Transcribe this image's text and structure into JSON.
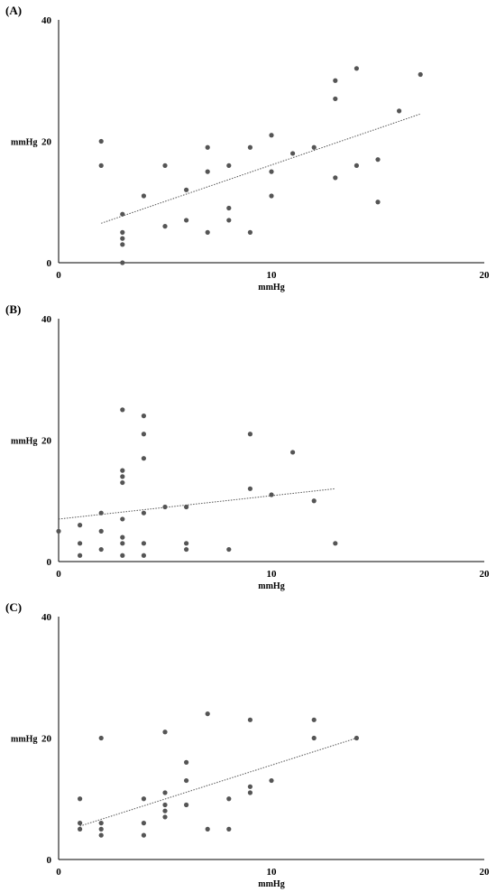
{
  "chart_data": [
    {
      "type": "scatter",
      "panel_label": "(A)",
      "xlabel": "mmHg",
      "ylabel": "mmHg",
      "xlim": [
        0,
        20
      ],
      "ylim": [
        0,
        40
      ],
      "x_ticks": [
        "0",
        "10",
        "20"
      ],
      "y_ticks": [
        "0",
        "20",
        "40"
      ],
      "trendline": {
        "x": [
          2,
          17
        ],
        "y": [
          6.5,
          24.5
        ]
      },
      "points": [
        [
          2,
          20
        ],
        [
          2,
          16
        ],
        [
          3,
          8
        ],
        [
          3,
          5
        ],
        [
          3,
          4
        ],
        [
          3,
          3
        ],
        [
          3,
          0
        ],
        [
          4,
          11
        ],
        [
          5,
          16
        ],
        [
          5,
          6
        ],
        [
          6,
          12
        ],
        [
          6,
          7
        ],
        [
          7,
          19
        ],
        [
          7,
          15
        ],
        [
          7,
          5
        ],
        [
          8,
          16
        ],
        [
          8,
          9
        ],
        [
          8,
          7
        ],
        [
          9,
          19
        ],
        [
          9,
          5
        ],
        [
          10,
          21
        ],
        [
          10,
          15
        ],
        [
          10,
          11
        ],
        [
          11,
          18
        ],
        [
          12,
          19
        ],
        [
          13,
          30
        ],
        [
          13,
          27
        ],
        [
          13,
          14
        ],
        [
          14,
          32
        ],
        [
          14,
          16
        ],
        [
          15,
          17
        ],
        [
          15,
          10
        ],
        [
          16,
          25
        ],
        [
          17,
          31
        ]
      ]
    },
    {
      "type": "scatter",
      "panel_label": "(B)",
      "xlabel": "mmHg",
      "ylabel": "mmHg",
      "xlim": [
        0,
        20
      ],
      "ylim": [
        0,
        40
      ],
      "x_ticks": [
        "0",
        "10",
        "20"
      ],
      "y_ticks": [
        "0",
        "20",
        "40"
      ],
      "trendline": {
        "x": [
          0,
          13
        ],
        "y": [
          7,
          12
        ]
      },
      "points": [
        [
          0,
          5
        ],
        [
          1,
          6
        ],
        [
          1,
          3
        ],
        [
          1,
          1
        ],
        [
          2,
          8
        ],
        [
          2,
          5
        ],
        [
          2,
          2
        ],
        [
          3,
          25
        ],
        [
          3,
          15
        ],
        [
          3,
          14
        ],
        [
          3,
          13
        ],
        [
          3,
          7
        ],
        [
          3,
          4
        ],
        [
          3,
          3
        ],
        [
          3,
          1
        ],
        [
          4,
          24
        ],
        [
          4,
          21
        ],
        [
          4,
          17
        ],
        [
          4,
          8
        ],
        [
          4,
          3
        ],
        [
          4,
          1
        ],
        [
          5,
          9
        ],
        [
          6,
          9
        ],
        [
          6,
          3
        ],
        [
          6,
          2
        ],
        [
          8,
          2
        ],
        [
          9,
          21
        ],
        [
          9,
          12
        ],
        [
          10,
          11
        ],
        [
          11,
          18
        ],
        [
          12,
          10
        ],
        [
          13,
          3
        ]
      ]
    },
    {
      "type": "scatter",
      "panel_label": "(C)",
      "xlabel": "mmHg",
      "ylabel": "mmHg",
      "xlim": [
        0,
        20
      ],
      "ylim": [
        0,
        40
      ],
      "x_ticks": [
        "0",
        "10",
        "20"
      ],
      "y_ticks": [
        "0",
        "20",
        "40"
      ],
      "trendline": {
        "x": [
          1,
          14
        ],
        "y": [
          5.5,
          20
        ]
      },
      "points": [
        [
          1,
          10
        ],
        [
          1,
          6
        ],
        [
          1,
          5
        ],
        [
          2,
          20
        ],
        [
          2,
          6
        ],
        [
          2,
          5
        ],
        [
          2,
          4
        ],
        [
          4,
          10
        ],
        [
          4,
          6
        ],
        [
          4,
          4
        ],
        [
          5,
          21
        ],
        [
          5,
          11
        ],
        [
          5,
          9
        ],
        [
          5,
          8
        ],
        [
          5,
          7
        ],
        [
          6,
          16
        ],
        [
          6,
          13
        ],
        [
          6,
          9
        ],
        [
          7,
          24
        ],
        [
          7,
          5
        ],
        [
          8,
          10
        ],
        [
          8,
          5
        ],
        [
          9,
          23
        ],
        [
          9,
          12
        ],
        [
          9,
          11
        ],
        [
          10,
          13
        ],
        [
          12,
          23
        ],
        [
          12,
          20
        ],
        [
          14,
          20
        ]
      ]
    }
  ]
}
